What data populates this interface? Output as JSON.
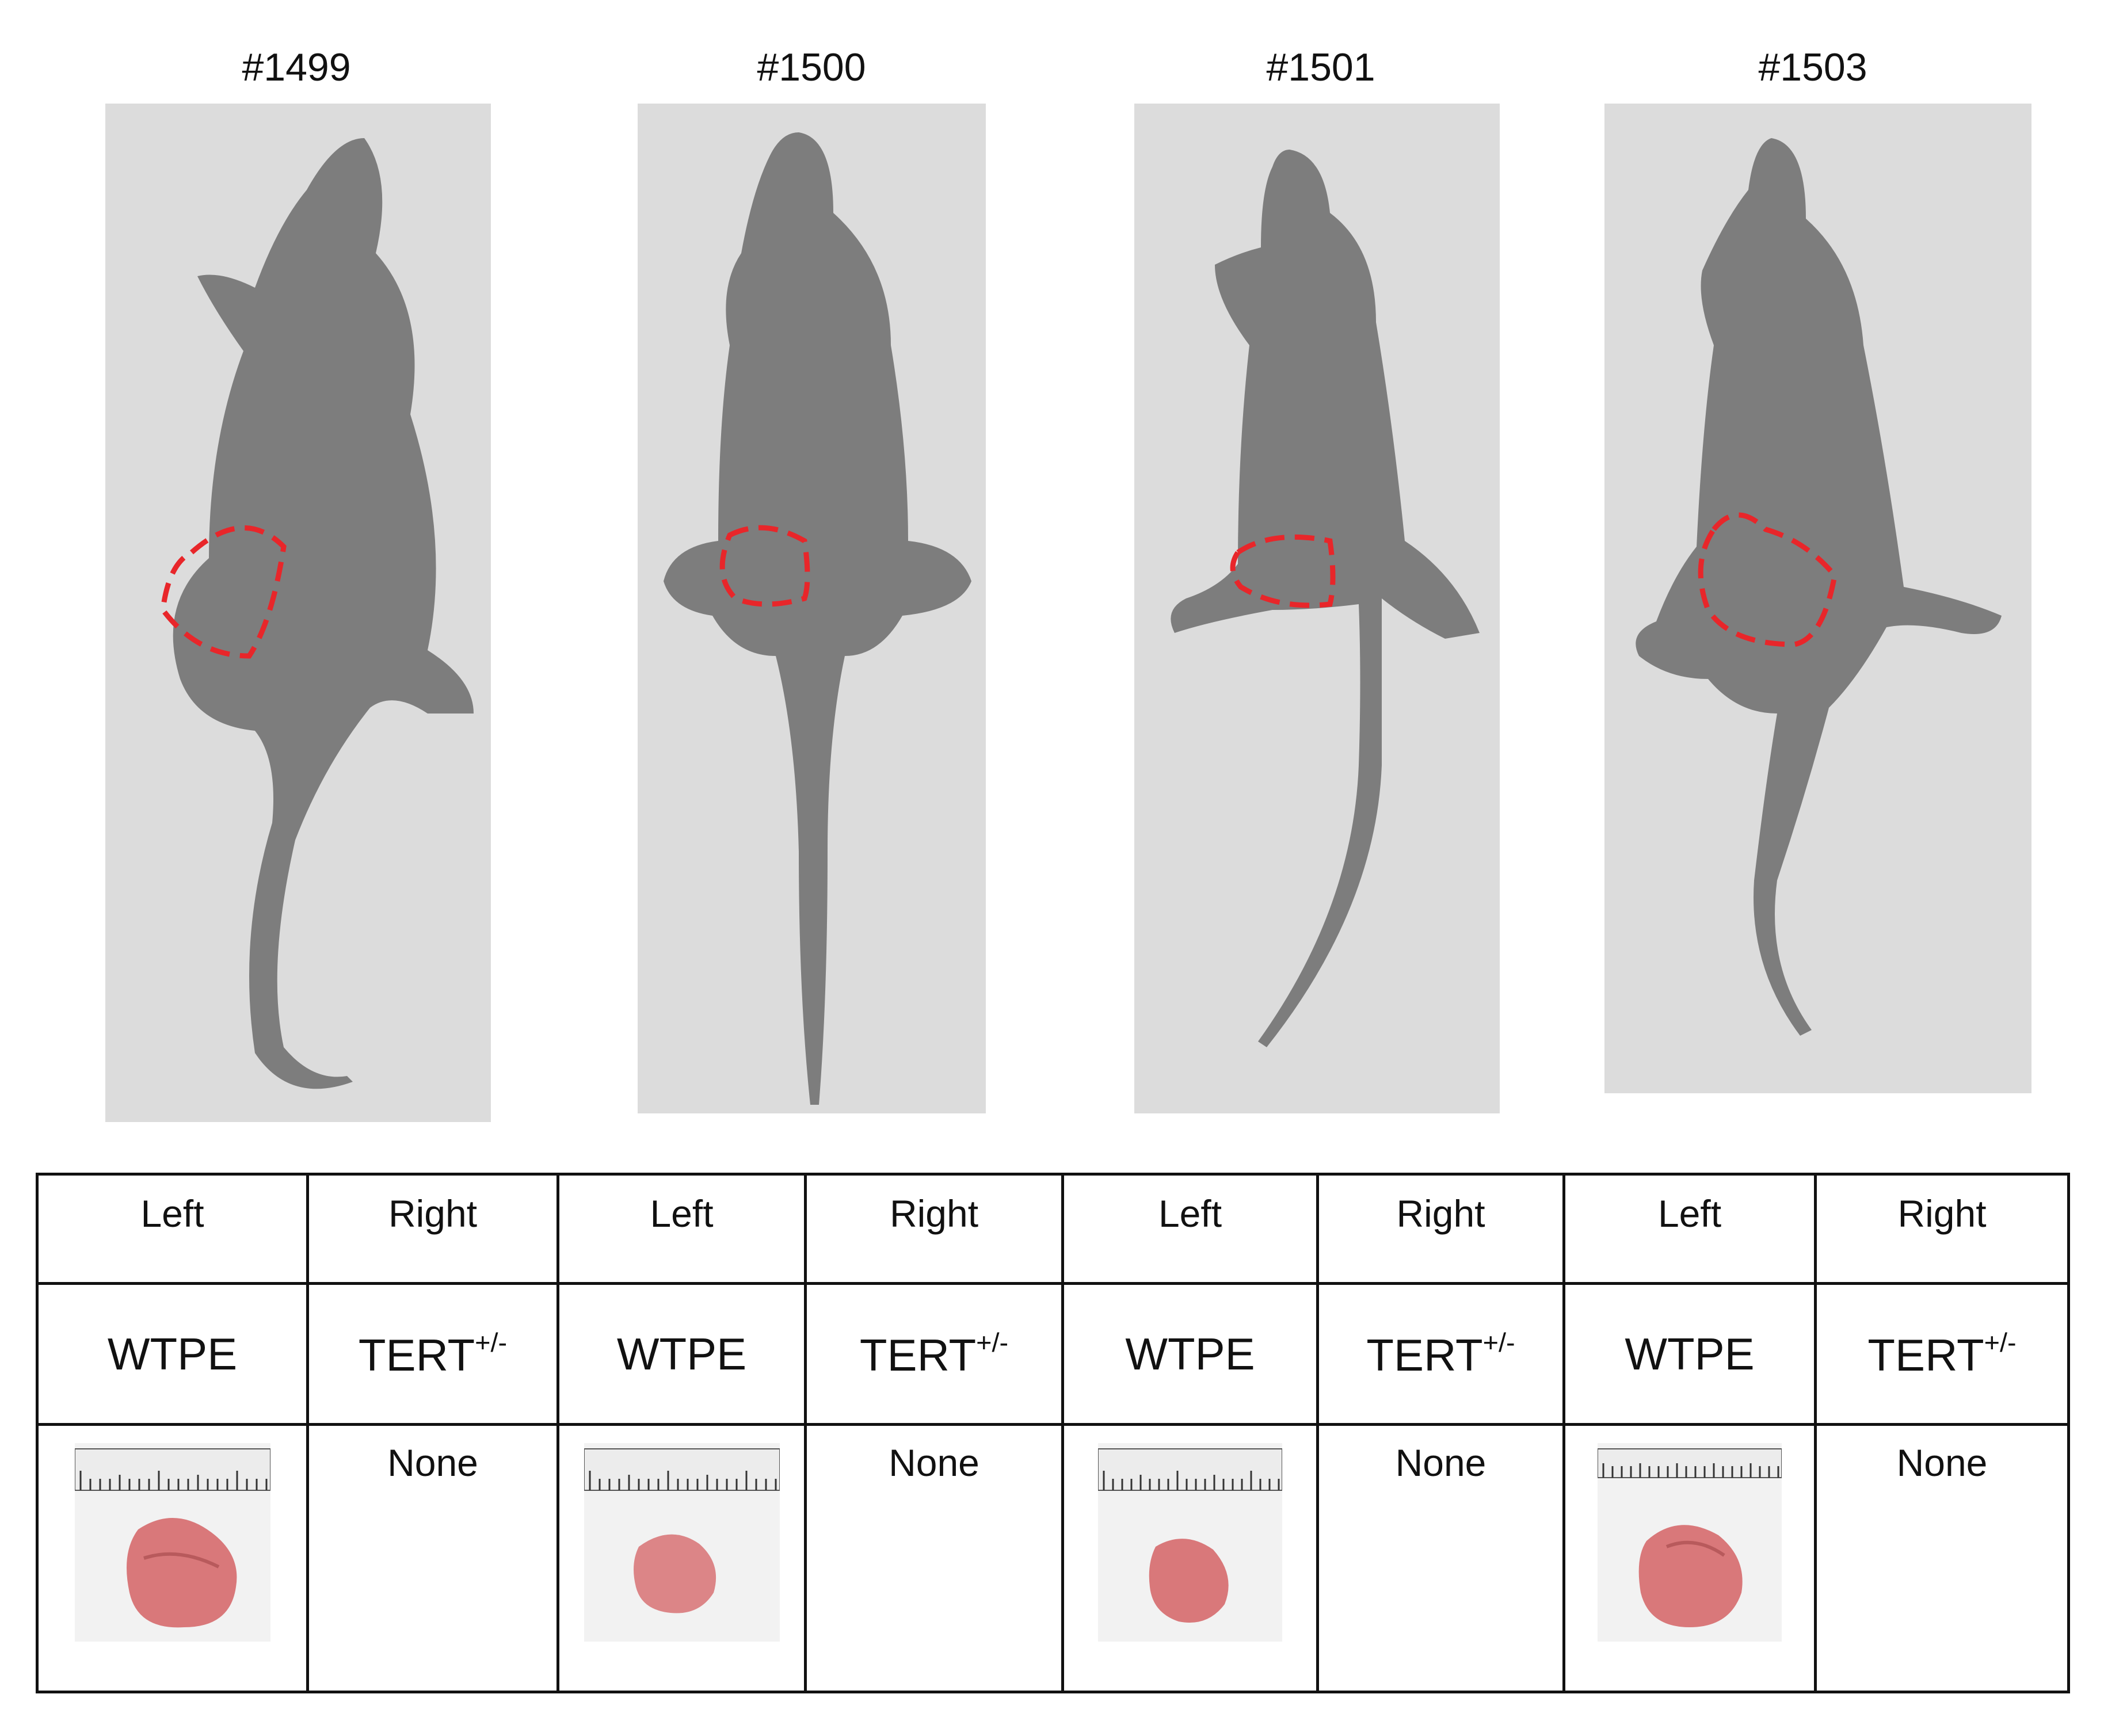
{
  "mice": [
    {
      "id_label": "#1499",
      "left_side": "Left",
      "right_side": "Right",
      "left_cell": "WTPE",
      "right_cell_base": "TERT",
      "right_cell_sup": "+/-",
      "right_result": "None"
    },
    {
      "id_label": "#1500",
      "left_side": "Left",
      "right_side": "Right",
      "left_cell": "WTPE",
      "right_cell_base": "TERT",
      "right_cell_sup": "+/-",
      "right_result": "None"
    },
    {
      "id_label": "#1501",
      "left_side": "Left",
      "right_side": "Right",
      "left_cell": "WTPE",
      "right_cell_base": "TERT",
      "right_cell_sup": "+/-",
      "right_result": "None"
    },
    {
      "id_label": "#1503",
      "left_side": "Left",
      "right_side": "Right",
      "left_cell": "WTPE",
      "right_cell_base": "TERT",
      "right_cell_sup": "+/-",
      "right_result": "None"
    }
  ],
  "colors": {
    "tumor_outline": "#e8262a",
    "photo_background": "#dcdcdc",
    "mouse_body": "#7d7d7d",
    "tumor_tissue": "#d9787a"
  },
  "icons": {
    "mouse_photo": "mouse-photo-icon",
    "tumor_photo": "tumor-photo-icon",
    "ruler": "ruler-icon"
  }
}
